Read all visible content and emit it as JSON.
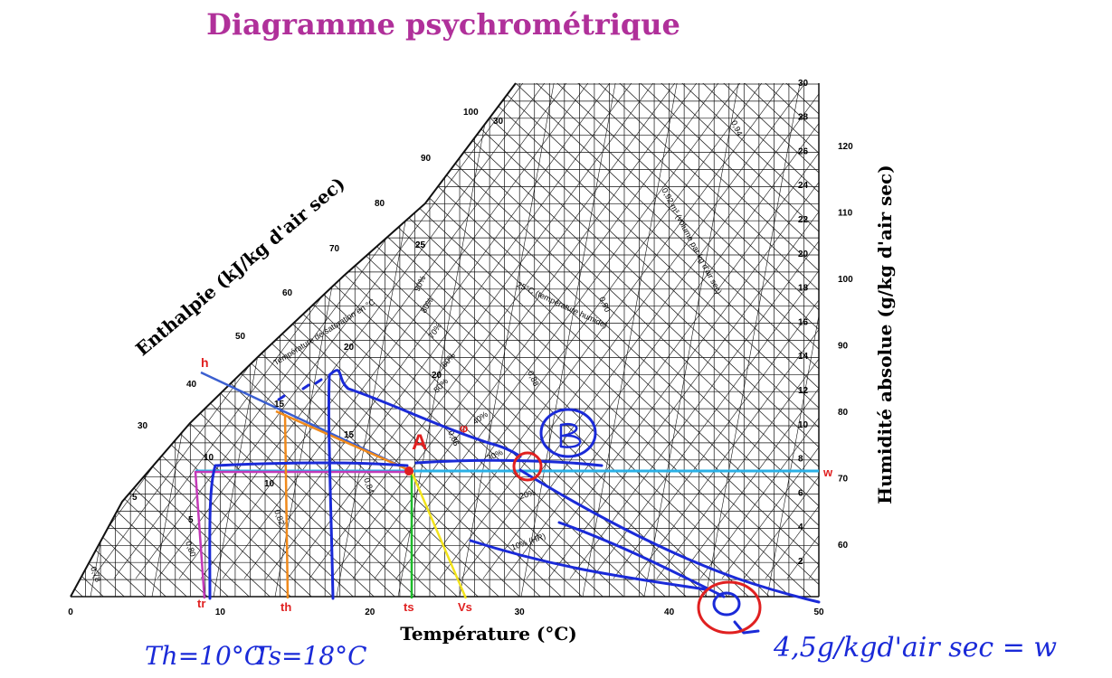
{
  "title": "Diagramme psychrométrique",
  "colors": {
    "title": "#b0309a",
    "grid": "#111111",
    "annot_red": "#e02020",
    "pen_blue": "#1a2ad8"
  },
  "axes": {
    "x_label": "Température (°C)",
    "y_label_right": "Humidité absolue (g/kg d'air sec)",
    "y_label_left": "Enthalpie (kJ/kg d'air sec)",
    "x_ticks": [
      "0",
      "10",
      "20",
      "30",
      "40",
      "50"
    ],
    "w_ticks": [
      "2",
      "4",
      "6",
      "8",
      "10",
      "12",
      "14",
      "16",
      "18",
      "20",
      "22",
      "24",
      "26",
      "28",
      "30"
    ],
    "outer_ticks": [
      "60",
      "70",
      "80",
      "90",
      "100",
      "110",
      "120"
    ],
    "enthalpy_ticks": [
      "5",
      "10",
      "15",
      "20",
      "25",
      "30",
      "40",
      "50",
      "60",
      "70",
      "80",
      "90",
      "100"
    ],
    "wet_bulb_ticks": [
      "5",
      "10",
      "15",
      "20",
      "25",
      "30"
    ]
  },
  "chart_labels": {
    "sat_temp": "Température de saturation en °C",
    "volume": "0,92 m³ (volume par kg d'air sec)",
    "wet_bulb": "25°C (température humide)",
    "hr10": "10% (HR)",
    "rh": [
      "20%",
      "30%",
      "40%",
      "50%",
      "60%",
      "70%",
      "80%",
      "90%"
    ],
    "volumes": [
      "0,78",
      "0,80",
      "0,82",
      "0,84",
      "0,86",
      "0,88",
      "0,90",
      "0,94"
    ]
  },
  "annotations": {
    "h": "h",
    "A": "A",
    "phi": "φ",
    "w": "w",
    "tr": "tr",
    "th": "th",
    "ts": "ts",
    "Vs": "Vs",
    "B": "B",
    "note_th": "Th=10°C",
    "note_ts": "Ts=18°C",
    "note_w": "4,5g/kgd'air sec = w"
  }
}
